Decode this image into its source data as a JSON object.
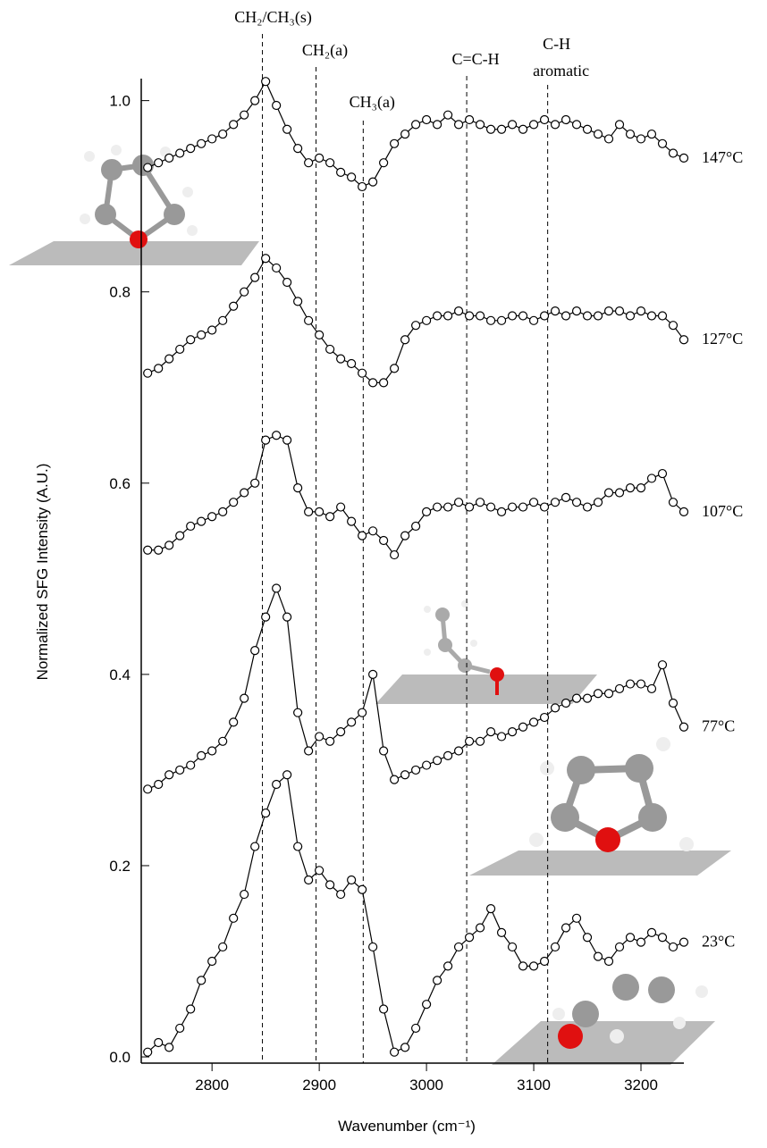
{
  "chart_data": {
    "type": "line",
    "x_label": "Wavenumber (cm⁻¹)",
    "y_label": "Normalized SFG Intensity (A.U.)",
    "xlim": [
      2734,
      3240
    ],
    "ylim": [
      -0.0065,
      1.023
    ],
    "xticks": [
      2800,
      2900,
      3000,
      3100,
      3200
    ],
    "yticks": [
      {
        "value": 0,
        "label": "0.0"
      },
      0.2,
      0.4,
      0.6,
      0.8,
      {
        "value": 1,
        "label": "1.0"
      }
    ],
    "marker": "open-circle",
    "annotations": [
      {
        "label": "CH₂/CH₃(s)",
        "x": 2847
      },
      {
        "label": "CH₂(a)",
        "x": 2897
      },
      {
        "label": "CH₃(a)",
        "x": 2941
      },
      {
        "label": "C=C-H",
        "x": 3037.5
      },
      {
        "label": "C-H",
        "sublabel": "aromatic",
        "x": 3113
      }
    ],
    "x": [
      2740,
      2750,
      2760,
      2770,
      2780,
      2790,
      2800,
      2810,
      2820,
      2830,
      2840,
      2850,
      2860,
      2870,
      2880,
      2890,
      2900,
      2910,
      2920,
      2930,
      2940,
      2950,
      2960,
      2970,
      2980,
      2990,
      3000,
      3010,
      3020,
      3030,
      3040,
      3050,
      3060,
      3070,
      3080,
      3090,
      3100,
      3110,
      3120,
      3130,
      3140,
      3150,
      3160,
      3170,
      3180,
      3190,
      3200,
      3210,
      3220,
      3230,
      3240
    ],
    "series": [
      {
        "name": "147°C",
        "color": "#000000",
        "values": [
          0.93,
          0.935,
          0.94,
          0.945,
          0.95,
          0.955,
          0.96,
          0.965,
          0.975,
          0.985,
          1.0,
          1.02,
          0.995,
          0.97,
          0.95,
          0.935,
          0.94,
          0.935,
          0.925,
          0.92,
          0.91,
          0.915,
          0.935,
          0.955,
          0.965,
          0.975,
          0.98,
          0.975,
          0.985,
          0.975,
          0.98,
          0.975,
          0.97,
          0.97,
          0.975,
          0.97,
          0.975,
          0.98,
          0.975,
          0.98,
          0.975,
          0.97,
          0.965,
          0.96,
          0.975,
          0.965,
          0.96,
          0.965,
          0.955,
          0.945,
          0.94
        ]
      },
      {
        "name": "127°C",
        "color": "#000000",
        "values": [
          0.715,
          0.72,
          0.73,
          0.74,
          0.75,
          0.755,
          0.76,
          0.77,
          0.785,
          0.8,
          0.815,
          0.835,
          0.825,
          0.81,
          0.79,
          0.77,
          0.755,
          0.74,
          0.73,
          0.725,
          0.715,
          0.705,
          0.705,
          0.72,
          0.75,
          0.765,
          0.77,
          0.775,
          0.775,
          0.78,
          0.775,
          0.775,
          0.77,
          0.77,
          0.775,
          0.775,
          0.77,
          0.775,
          0.78,
          0.775,
          0.78,
          0.775,
          0.775,
          0.78,
          0.78,
          0.775,
          0.78,
          0.775,
          0.775,
          0.765,
          0.75
        ]
      },
      {
        "name": "107°C",
        "color": "#000000",
        "values": [
          0.53,
          0.53,
          0.535,
          0.545,
          0.555,
          0.56,
          0.565,
          0.57,
          0.58,
          0.59,
          0.6,
          0.645,
          0.65,
          0.645,
          0.595,
          0.57,
          0.57,
          0.565,
          0.575,
          0.56,
          0.545,
          0.55,
          0.54,
          0.525,
          0.545,
          0.555,
          0.57,
          0.575,
          0.575,
          0.58,
          0.575,
          0.58,
          0.575,
          0.57,
          0.575,
          0.575,
          0.58,
          0.575,
          0.58,
          0.585,
          0.58,
          0.575,
          0.58,
          0.59,
          0.59,
          0.595,
          0.595,
          0.605,
          0.61,
          0.58,
          0.57
        ]
      },
      {
        "name": "77°C",
        "color": "#000000",
        "values": [
          0.28,
          0.285,
          0.295,
          0.3,
          0.305,
          0.315,
          0.32,
          0.33,
          0.35,
          0.375,
          0.425,
          0.46,
          0.49,
          0.46,
          0.36,
          0.32,
          0.335,
          0.33,
          0.34,
          0.35,
          0.36,
          0.4,
          0.32,
          0.29,
          0.295,
          0.3,
          0.305,
          0.31,
          0.315,
          0.32,
          0.33,
          0.33,
          0.34,
          0.335,
          0.34,
          0.345,
          0.35,
          0.355,
          0.365,
          0.37,
          0.375,
          0.375,
          0.38,
          0.38,
          0.385,
          0.39,
          0.39,
          0.385,
          0.41,
          0.37,
          0.345
        ]
      },
      {
        "name": "23°C",
        "color": "#000000",
        "values": [
          0.005,
          0.015,
          0.01,
          0.03,
          0.05,
          0.08,
          0.1,
          0.115,
          0.145,
          0.17,
          0.22,
          0.255,
          0.285,
          0.295,
          0.22,
          0.185,
          0.195,
          0.18,
          0.17,
          0.185,
          0.175,
          0.115,
          0.05,
          0.005,
          0.01,
          0.03,
          0.055,
          0.08,
          0.095,
          0.115,
          0.125,
          0.135,
          0.155,
          0.13,
          0.115,
          0.095,
          0.095,
          0.1,
          0.115,
          0.135,
          0.145,
          0.125,
          0.105,
          0.1,
          0.115,
          0.125,
          0.12,
          0.13,
          0.125,
          0.115,
          0.12
        ]
      }
    ]
  }
}
